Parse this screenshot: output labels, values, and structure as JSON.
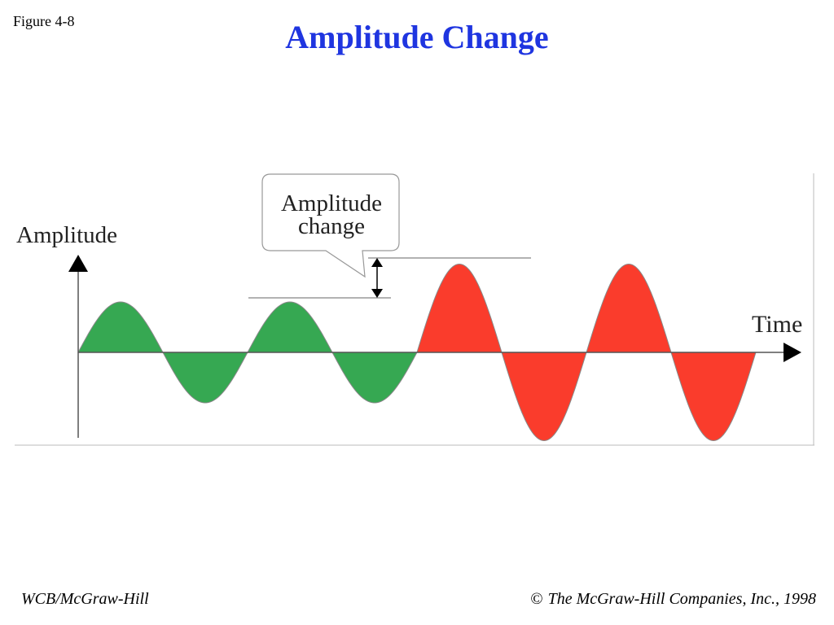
{
  "slide": {
    "figure_label": "Figure 4-8",
    "title": "Amplitude Change"
  },
  "diagram": {
    "y_axis_label": "Amplitude",
    "x_axis_label": "Time",
    "callout_line1": "Amplitude",
    "callout_line2": "change",
    "colors": {
      "low_amplitude_fill": "#36a852",
      "high_amplitude_fill": "#fa3c2c",
      "axis": "#000000",
      "title": "#1f35e0"
    },
    "cycles_low_amplitude": 2,
    "cycles_high_amplitude": 2,
    "amplitude_ratio": 1.75
  },
  "footer": {
    "left": "WCB/McGraw-Hill",
    "copyright_symbol": "©",
    "right": "The McGraw-Hill Companies, Inc., 1998"
  }
}
